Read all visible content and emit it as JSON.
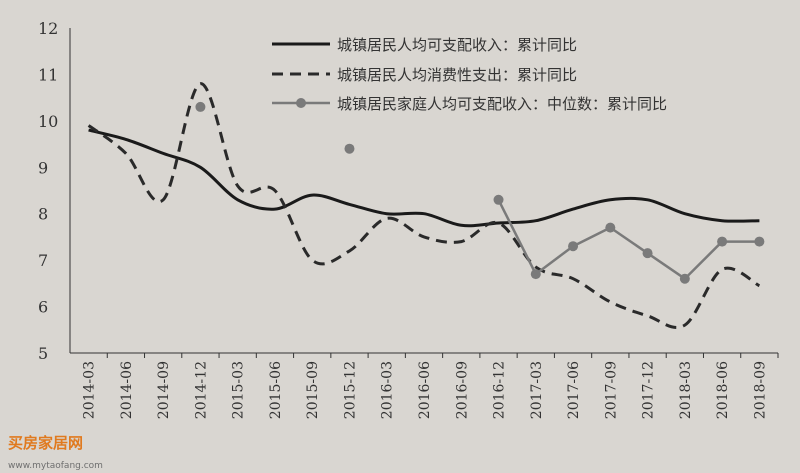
{
  "chart_data": {
    "type": "line",
    "title": "",
    "xlabel": "",
    "ylabel": "",
    "ylim": [
      5,
      12
    ],
    "yticks": [
      5,
      6,
      7,
      8,
      9,
      10,
      11,
      12
    ],
    "categories": [
      "2014-03",
      "2014-06",
      "2014-09",
      "2014-12",
      "2015-03",
      "2015-06",
      "2015-09",
      "2015-12",
      "2016-03",
      "2016-06",
      "2016-09",
      "2016-12",
      "2017-03",
      "2017-06",
      "2017-09",
      "2017-12",
      "2018-03",
      "2018-06",
      "2018-09"
    ],
    "grid": false,
    "legend_position": "top-right",
    "series": [
      {
        "name": "城镇居民人均可支配收入：累计同比",
        "style": "solid",
        "color": "#1a1a1a",
        "values": [
          9.8,
          9.6,
          9.3,
          9.0,
          8.3,
          8.1,
          8.4,
          8.2,
          8.0,
          8.0,
          7.75,
          7.8,
          7.85,
          8.1,
          8.3,
          8.3,
          8.0,
          7.85,
          7.85
        ]
      },
      {
        "name": "城镇居民人均消费性支出：累计同比",
        "style": "dashed",
        "color": "#2a2a2a",
        "values": [
          9.9,
          9.3,
          8.3,
          10.8,
          8.6,
          8.5,
          7.0,
          7.2,
          7.9,
          7.5,
          7.4,
          7.8,
          6.85,
          6.6,
          6.1,
          5.8,
          5.6,
          6.8,
          6.45
        ]
      },
      {
        "name": "城镇居民家庭人均可支配收入：中位数：累计同比",
        "style": "marker-line",
        "color": "#7a7a7a",
        "values": [
          null,
          null,
          null,
          10.3,
          null,
          null,
          null,
          9.4,
          null,
          null,
          null,
          8.3,
          6.7,
          7.3,
          7.7,
          7.15,
          6.6,
          7.4,
          7.4
        ]
      }
    ]
  },
  "watermark": {
    "logo_text": "家居网",
    "badge_text": "买房",
    "url_text": "www.mytaofang.com",
    "brand_color": "#e07a1f"
  }
}
